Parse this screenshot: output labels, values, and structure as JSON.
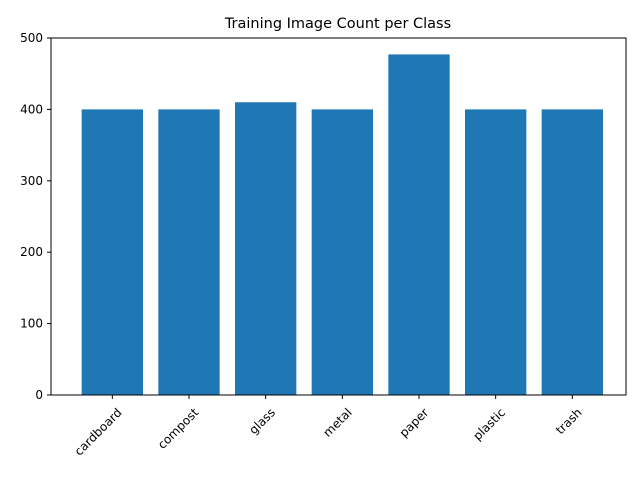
{
  "chart_data": {
    "type": "bar",
    "title": "Training Image Count per Class",
    "xlabel": "",
    "ylabel": "",
    "categories": [
      "cardboard",
      "compost",
      "glass",
      "metal",
      "paper",
      "plastic",
      "trash"
    ],
    "values": [
      400,
      400,
      410,
      400,
      477,
      400,
      400
    ],
    "ylim": [
      0,
      500
    ],
    "yticks": [
      0,
      100,
      200,
      300,
      400,
      500
    ],
    "bar_color": "#1f77b4",
    "grid": false,
    "legend": "none"
  }
}
